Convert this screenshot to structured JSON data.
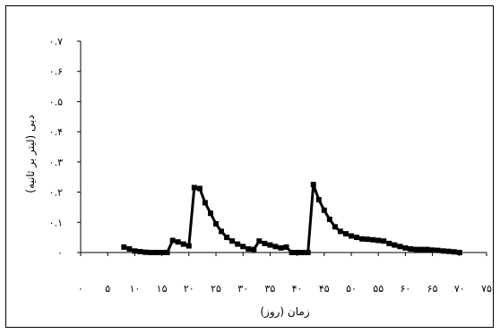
{
  "chart_data": {
    "type": "line",
    "title": "",
    "xlabel": "زمان (روز)",
    "ylabel": "دبی (لیتر بر ثانیه)",
    "xlim": [
      0,
      75
    ],
    "ylim": [
      0,
      0.7
    ],
    "x_ticks": [
      0,
      5,
      10,
      15,
      20,
      25,
      30,
      35,
      40,
      45,
      50,
      55,
      60,
      65,
      70,
      75
    ],
    "x_tick_labels": [
      "۰",
      "۵",
      "۱۰",
      "۱۵",
      "۲۰",
      "۲۵",
      "۳۰",
      "۳۵",
      "۴۰",
      "۴۵",
      "۵۰",
      "۵۵",
      "۶۰",
      "۶۵",
      "۷۰",
      "۷۵"
    ],
    "y_ticks": [
      0,
      0.1,
      0.2,
      0.3,
      0.4,
      0.5,
      0.6,
      0.7
    ],
    "y_tick_labels": [
      "۰",
      "۰.۱",
      "۰.۲",
      "۰.۳",
      "۰.۴",
      "۰.۵",
      "۰.۶",
      "۰.۷"
    ],
    "grid": false,
    "legend": "none",
    "series": [
      {
        "color": "#000000",
        "marker": "square",
        "x": [
          8,
          9,
          10,
          11,
          12,
          13,
          14,
          15,
          16,
          17,
          18,
          19,
          20,
          21,
          22,
          23,
          24,
          25,
          26,
          27,
          28,
          29,
          30,
          31,
          32,
          33,
          34,
          35,
          36,
          37,
          38,
          39,
          40,
          41,
          42,
          43,
          44,
          45,
          46,
          47,
          48,
          49,
          50,
          51,
          52,
          53,
          54,
          55,
          56,
          57,
          58,
          59,
          60,
          61,
          62,
          63,
          64,
          65,
          66,
          67,
          68,
          69,
          70
        ],
        "y": [
          0.018,
          0.012,
          0.005,
          0.003,
          0.001,
          0.0,
          0.0,
          0.0,
          0.0,
          0.04,
          0.035,
          0.028,
          0.022,
          0.215,
          0.212,
          0.165,
          0.13,
          0.095,
          0.07,
          0.05,
          0.038,
          0.028,
          0.02,
          0.012,
          0.01,
          0.038,
          0.03,
          0.025,
          0.02,
          0.015,
          0.018,
          0.0,
          0.0,
          0.0,
          0.0,
          0.225,
          0.175,
          0.14,
          0.11,
          0.085,
          0.07,
          0.062,
          0.055,
          0.05,
          0.045,
          0.044,
          0.042,
          0.04,
          0.038,
          0.03,
          0.025,
          0.02,
          0.015,
          0.012,
          0.01,
          0.01,
          0.01,
          0.008,
          0.007,
          0.005,
          0.004,
          0.002,
          0.0
        ]
      }
    ]
  }
}
